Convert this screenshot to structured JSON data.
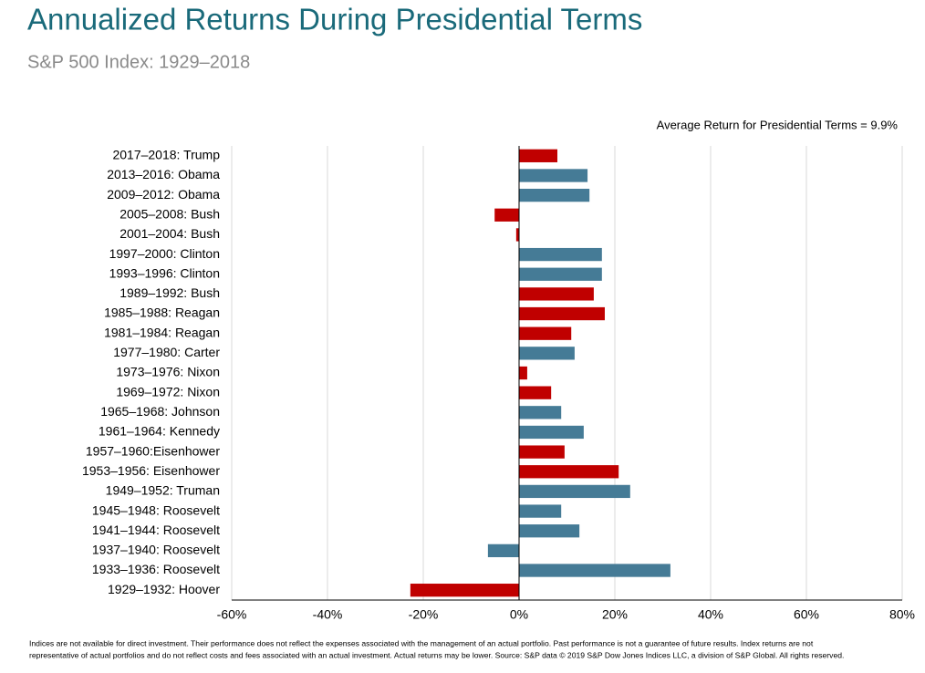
{
  "chart_data": {
    "type": "hbar",
    "title": "Annualized Returns During Presidential Terms",
    "subtitle": "S&P 500 Index: 1929–2018",
    "annotation": "Average Return for Presidential Terms = 9.9%",
    "footnote": [
      "Indices are not available for direct investment. Their performance does not reflect the expenses associated with the management of an actual portfolio. Past performance is not a guarantee of future results. Index returns are not",
      "representative of actual portfolios and do not reflect costs and fees associated with an actual investment. Actual returns may be lower. Source: S&P data © 2019 S&P Dow Jones Indices LLC, a division of S&P Global. All rights reserved."
    ],
    "categories": [
      "2017–2018: Trump",
      "2013–2016: Obama",
      "2009–2012: Obama",
      "2005–2008: Bush",
      "2001–2004: Bush",
      "1997–2000: Clinton",
      "1993–1996: Clinton",
      "1989–1992: Bush",
      "1985–1988: Reagan",
      "1981–1984: Reagan",
      "1977–1980: Carter",
      "1973–1976: Nixon",
      "1969–1972: Nixon",
      "1965–1968: Johnson",
      "1961–1964: Kennedy",
      "1957–1960:Eisenhower",
      "1953–1956: Eisenhower",
      "1949–1952: Truman",
      "1945–1948: Roosevelt",
      "1941–1944: Roosevelt",
      "1937–1940: Roosevelt",
      "1933–1936: Roosevelt",
      "1929–1932: Hoover"
    ],
    "values": [
      8.0,
      14.3,
      14.7,
      -5.1,
      -0.6,
      17.3,
      17.3,
      15.6,
      17.9,
      10.9,
      11.6,
      1.7,
      6.7,
      8.8,
      13.5,
      9.5,
      20.8,
      23.2,
      8.8,
      12.6,
      -6.5,
      31.6,
      -22.7
    ],
    "colors": [
      "#c00000",
      "#457b96",
      "#457b96",
      "#c00000",
      "#c00000",
      "#457b96",
      "#457b96",
      "#c00000",
      "#c00000",
      "#c00000",
      "#457b96",
      "#c00000",
      "#c00000",
      "#457b96",
      "#457b96",
      "#c00000",
      "#c00000",
      "#457b96",
      "#457b96",
      "#457b96",
      "#457b96",
      "#457b96",
      "#c00000"
    ],
    "xlim": [
      -60,
      80
    ],
    "xticks": [
      {
        "value": -60,
        "label": "-60%"
      },
      {
        "value": -40,
        "label": "-40%"
      },
      {
        "value": -20,
        "label": "-20%"
      },
      {
        "value": 0,
        "label": "0%"
      },
      {
        "value": 20,
        "label": "20%"
      },
      {
        "value": 40,
        "label": "40%"
      },
      {
        "value": 60,
        "label": "60%"
      },
      {
        "value": 80,
        "label": "80%"
      }
    ],
    "grid": true
  }
}
